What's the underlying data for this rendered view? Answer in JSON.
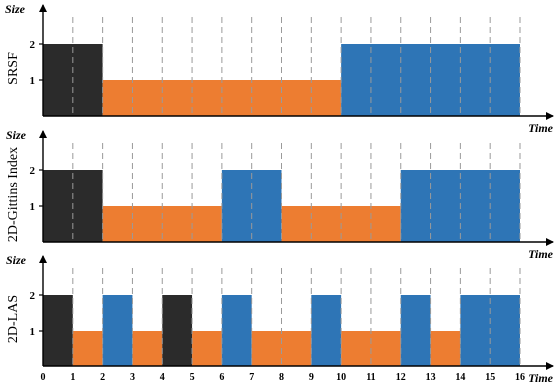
{
  "colors": {
    "black_job": "#2b2b2b",
    "orange_job": "#ed7d31",
    "blue_job": "#2e75b6",
    "axis": "#000000",
    "gridline": "#9a9a9a"
  },
  "x_tick_labels": [
    "0",
    "1",
    "2",
    "3",
    "4",
    "5",
    "6",
    "7",
    "8",
    "9",
    "10",
    "11",
    "12",
    "13",
    "14",
    "15",
    "16"
  ],
  "chart_data": [
    {
      "type": "bar",
      "ylabel": "SRSF",
      "yaxis_label": "Size",
      "xaxis_label": "Time",
      "xlim": [
        0,
        16
      ],
      "ylim": [
        0,
        2
      ],
      "yticks": [
        "1",
        "2"
      ],
      "grid": "vertical dashed at each integer time",
      "segments": [
        {
          "job": "black",
          "start": 0,
          "end": 2,
          "size": 2
        },
        {
          "job": "orange",
          "start": 2,
          "end": 10,
          "size": 1
        },
        {
          "job": "blue",
          "start": 10,
          "end": 16,
          "size": 2
        }
      ]
    },
    {
      "type": "bar",
      "ylabel": "2D-Gittins Index",
      "yaxis_label": "Size",
      "xaxis_label": "Time",
      "xlim": [
        0,
        16
      ],
      "ylim": [
        0,
        2
      ],
      "yticks": [
        "1",
        "2"
      ],
      "grid": "vertical dashed at each integer time",
      "segments": [
        {
          "job": "black",
          "start": 0,
          "end": 2,
          "size": 2
        },
        {
          "job": "orange",
          "start": 2,
          "end": 6,
          "size": 1
        },
        {
          "job": "blue",
          "start": 6,
          "end": 8,
          "size": 2
        },
        {
          "job": "orange",
          "start": 8,
          "end": 12,
          "size": 1
        },
        {
          "job": "blue",
          "start": 12,
          "end": 16,
          "size": 2
        }
      ]
    },
    {
      "type": "bar",
      "ylabel": "2D-LAS",
      "yaxis_label": "Size",
      "xaxis_label": "Time",
      "xlim": [
        0,
        16
      ],
      "ylim": [
        0,
        2
      ],
      "yticks": [
        "1",
        "2"
      ],
      "grid": "vertical dashed at each integer time",
      "segments": [
        {
          "job": "black",
          "start": 0,
          "end": 1,
          "size": 2
        },
        {
          "job": "orange",
          "start": 1,
          "end": 2,
          "size": 1
        },
        {
          "job": "blue",
          "start": 2,
          "end": 3,
          "size": 2
        },
        {
          "job": "orange",
          "start": 3,
          "end": 4,
          "size": 1
        },
        {
          "job": "black",
          "start": 4,
          "end": 5,
          "size": 2
        },
        {
          "job": "orange",
          "start": 5,
          "end": 6,
          "size": 1
        },
        {
          "job": "blue",
          "start": 6,
          "end": 7,
          "size": 2
        },
        {
          "job": "orange",
          "start": 7,
          "end": 9,
          "size": 1
        },
        {
          "job": "blue",
          "start": 9,
          "end": 10,
          "size": 2
        },
        {
          "job": "orange",
          "start": 10,
          "end": 12,
          "size": 1
        },
        {
          "job": "blue",
          "start": 12,
          "end": 13,
          "size": 2
        },
        {
          "job": "orange",
          "start": 13,
          "end": 14,
          "size": 1
        },
        {
          "job": "blue",
          "start": 14,
          "end": 16,
          "size": 2
        }
      ]
    }
  ]
}
